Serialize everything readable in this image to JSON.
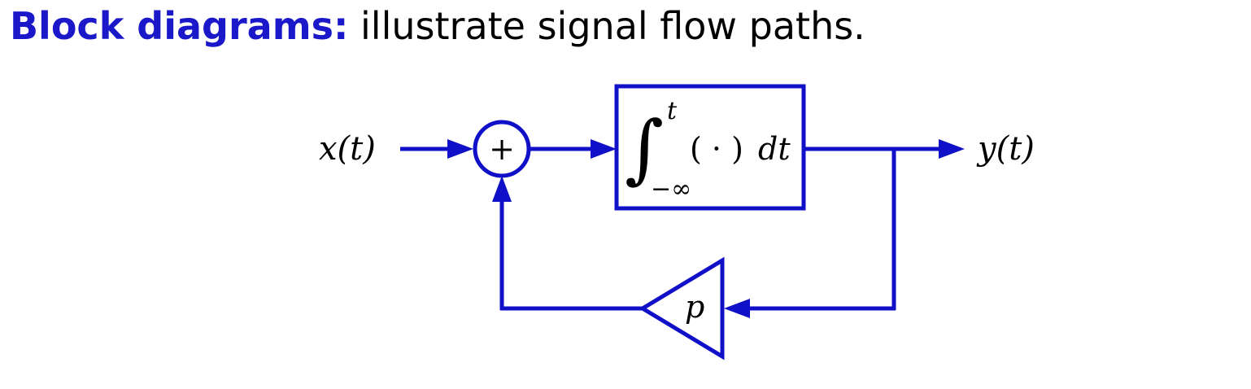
{
  "heading": {
    "term": "Block diagrams:",
    "rest": "illustrate signal flow paths."
  },
  "diagram": {
    "input_label": "x(t)",
    "output_label": "y(t)",
    "summer_symbol": "+",
    "integrator": {
      "integral_sign": "∫",
      "upper_limit": "t",
      "lower_limit": "−∞",
      "integrand": "( · )",
      "differential": "dt"
    },
    "gain_label": "p",
    "colors": {
      "wire": "#1010c8",
      "heading_term": "#1a18c8",
      "text": "#000000"
    }
  }
}
